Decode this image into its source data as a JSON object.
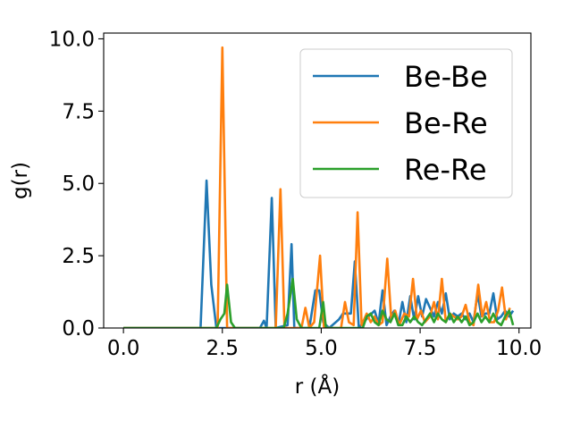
{
  "chart_data": {
    "type": "line",
    "xlabel": "r (Å)",
    "ylabel": "g(r)",
    "xlim": [
      -0.5,
      10.3
    ],
    "ylim": [
      0,
      10.2
    ],
    "xticks": [
      "0.0",
      "2.5",
      "5.0",
      "7.5",
      "10.0"
    ],
    "yticks": [
      "0.0",
      "2.5",
      "5.0",
      "7.5",
      "10.0"
    ],
    "grid": false,
    "legend_position": "top-right",
    "series": [
      {
        "name": "Be-Be",
        "color": "#1f77b4",
        "points": [
          [
            0,
            0
          ],
          [
            1.95,
            0
          ],
          [
            2.1,
            5.1
          ],
          [
            2.22,
            1.5
          ],
          [
            2.35,
            0
          ],
          [
            3.45,
            0
          ],
          [
            3.55,
            0.25
          ],
          [
            3.62,
            0
          ],
          [
            3.75,
            4.5
          ],
          [
            3.85,
            0
          ],
          [
            4.15,
            0.1
          ],
          [
            4.25,
            2.9
          ],
          [
            4.32,
            0
          ],
          [
            4.7,
            0
          ],
          [
            4.85,
            1.3
          ],
          [
            4.95,
            1.3
          ],
          [
            5.05,
            0.2
          ],
          [
            5.2,
            0
          ],
          [
            5.45,
            0.3
          ],
          [
            5.55,
            0.5
          ],
          [
            5.75,
            0.5
          ],
          [
            5.85,
            2.3
          ],
          [
            5.95,
            0
          ],
          [
            6.2,
            0.4
          ],
          [
            6.35,
            0.6
          ],
          [
            6.45,
            0.15
          ],
          [
            6.55,
            1.3
          ],
          [
            6.65,
            0.1
          ],
          [
            6.75,
            0.4
          ],
          [
            6.85,
            0.6
          ],
          [
            6.95,
            0.1
          ],
          [
            7.05,
            0.9
          ],
          [
            7.15,
            0.2
          ],
          [
            7.25,
            1.1
          ],
          [
            7.35,
            0.3
          ],
          [
            7.45,
            1.1
          ],
          [
            7.55,
            0.4
          ],
          [
            7.65,
            1.0
          ],
          [
            7.75,
            0.7
          ],
          [
            7.85,
            0.4
          ],
          [
            7.95,
            0.9
          ],
          [
            8.05,
            0.5
          ],
          [
            8.15,
            1.2
          ],
          [
            8.25,
            0.3
          ],
          [
            8.35,
            0.5
          ],
          [
            8.45,
            0.4
          ],
          [
            8.55,
            0.5
          ],
          [
            8.65,
            0.3
          ],
          [
            8.75,
            0.5
          ],
          [
            8.85,
            0.2
          ],
          [
            8.95,
            1.2
          ],
          [
            9.05,
            0.4
          ],
          [
            9.15,
            0.5
          ],
          [
            9.25,
            0.5
          ],
          [
            9.35,
            1.2
          ],
          [
            9.45,
            0.3
          ],
          [
            9.55,
            0.4
          ],
          [
            9.65,
            0.6
          ],
          [
            9.75,
            0.4
          ],
          [
            9.85,
            0.6
          ]
        ]
      },
      {
        "name": "Be-Re",
        "color": "#ff7f0e",
        "points": [
          [
            0,
            0
          ],
          [
            2.38,
            0
          ],
          [
            2.5,
            9.7
          ],
          [
            2.62,
            0
          ],
          [
            3.85,
            0
          ],
          [
            3.97,
            4.8
          ],
          [
            4.07,
            0
          ],
          [
            4.5,
            0
          ],
          [
            4.6,
            0.7
          ],
          [
            4.7,
            0
          ],
          [
            4.82,
            0.2
          ],
          [
            4.97,
            2.5
          ],
          [
            5.07,
            0
          ],
          [
            5.5,
            0
          ],
          [
            5.6,
            0.9
          ],
          [
            5.7,
            0.2
          ],
          [
            5.82,
            0.1
          ],
          [
            5.92,
            4.0
          ],
          [
            6.02,
            0.1
          ],
          [
            6.15,
            0.5
          ],
          [
            6.25,
            0.2
          ],
          [
            6.35,
            0.4
          ],
          [
            6.45,
            0.1
          ],
          [
            6.55,
            0.2
          ],
          [
            6.67,
            2.4
          ],
          [
            6.77,
            0.3
          ],
          [
            6.87,
            0.6
          ],
          [
            6.97,
            0.1
          ],
          [
            7.1,
            0.5
          ],
          [
            7.22,
            0.4
          ],
          [
            7.32,
            1.7
          ],
          [
            7.42,
            0.3
          ],
          [
            7.52,
            0.6
          ],
          [
            7.62,
            0.2
          ],
          [
            7.75,
            0.4
          ],
          [
            7.85,
            0.9
          ],
          [
            7.95,
            0.3
          ],
          [
            8.05,
            1.7
          ],
          [
            8.15,
            0.2
          ],
          [
            8.25,
            0.5
          ],
          [
            8.35,
            0.4
          ],
          [
            8.45,
            0.3
          ],
          [
            8.55,
            0.4
          ],
          [
            8.65,
            0.8
          ],
          [
            8.75,
            0.2
          ],
          [
            8.85,
            0.1
          ],
          [
            8.97,
            1.5
          ],
          [
            9.07,
            0.4
          ],
          [
            9.17,
            0.9
          ],
          [
            9.27,
            0.2
          ],
          [
            9.37,
            0.2
          ],
          [
            9.47,
            0.6
          ],
          [
            9.57,
            1.4
          ],
          [
            9.67,
            0.3
          ],
          [
            9.77,
            0.7
          ]
        ]
      },
      {
        "name": "Re-Re",
        "color": "#2ca02c",
        "points": [
          [
            0,
            0
          ],
          [
            2.35,
            0
          ],
          [
            2.45,
            0.3
          ],
          [
            2.55,
            0.5
          ],
          [
            2.62,
            1.5
          ],
          [
            2.72,
            0.2
          ],
          [
            2.82,
            0
          ],
          [
            4.05,
            0
          ],
          [
            4.15,
            0.5
          ],
          [
            4.28,
            1.7
          ],
          [
            4.38,
            0.3
          ],
          [
            4.5,
            0
          ],
          [
            4.95,
            0
          ],
          [
            5.05,
            0.9
          ],
          [
            5.12,
            0
          ],
          [
            6.05,
            0
          ],
          [
            6.15,
            0.4
          ],
          [
            6.25,
            0.5
          ],
          [
            6.35,
            0.2
          ],
          [
            6.45,
            0.1
          ],
          [
            6.55,
            0.6
          ],
          [
            6.65,
            0.3
          ],
          [
            6.75,
            0.2
          ],
          [
            6.85,
            0.5
          ],
          [
            6.95,
            0.1
          ],
          [
            7.05,
            0.1
          ],
          [
            7.15,
            0.4
          ],
          [
            7.25,
            0.2
          ],
          [
            7.35,
            0.4
          ],
          [
            7.45,
            0.2
          ],
          [
            7.55,
            0.1
          ],
          [
            7.65,
            0.3
          ],
          [
            7.75,
            0.5
          ],
          [
            7.85,
            0.2
          ],
          [
            7.95,
            0.5
          ],
          [
            8.05,
            0.3
          ],
          [
            8.15,
            0.2
          ],
          [
            8.25,
            0.5
          ],
          [
            8.35,
            0.2
          ],
          [
            8.45,
            0.4
          ],
          [
            8.55,
            0.2
          ],
          [
            8.65,
            0.4
          ],
          [
            8.75,
            0.1
          ],
          [
            8.85,
            0.2
          ],
          [
            8.95,
            0.5
          ],
          [
            9.05,
            0.2
          ],
          [
            9.15,
            0.4
          ],
          [
            9.25,
            0.2
          ],
          [
            9.35,
            0.5
          ],
          [
            9.45,
            0.2
          ],
          [
            9.55,
            0.1
          ],
          [
            9.65,
            0.4
          ],
          [
            9.75,
            0.6
          ],
          [
            9.85,
            0.1
          ]
        ]
      }
    ]
  }
}
